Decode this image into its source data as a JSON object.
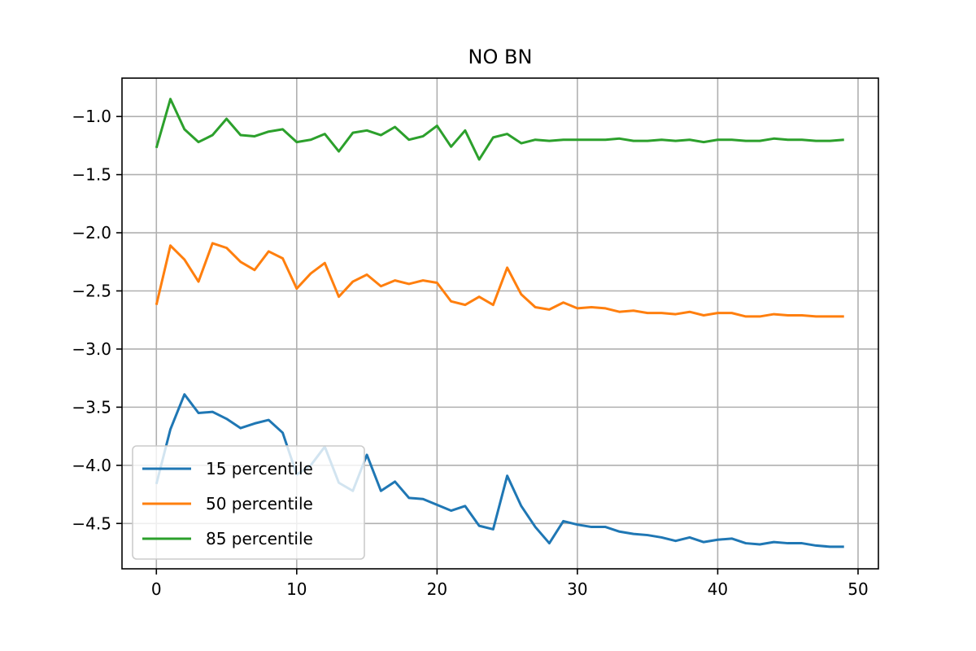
{
  "chart_data": {
    "type": "line",
    "title": "NO BN",
    "xlabel": "",
    "ylabel": "",
    "xlim": [
      -2.45,
      51.45
    ],
    "ylim": [
      -4.89,
      -0.67
    ],
    "xticks": [
      0,
      10,
      20,
      30,
      40,
      50
    ],
    "xtick_labels": [
      "0",
      "10",
      "20",
      "30",
      "40",
      "50"
    ],
    "yticks": [
      -1.0,
      -1.5,
      -2.0,
      -2.5,
      -3.0,
      -3.5,
      -4.0,
      -4.5
    ],
    "ytick_labels": [
      "−1.0",
      "−1.5",
      "−2.0",
      "−2.5",
      "−3.0",
      "−3.5",
      "−4.0",
      "−4.5"
    ],
    "grid": true,
    "legend_position": "lower-left",
    "x": [
      0,
      1,
      2,
      3,
      4,
      5,
      6,
      7,
      8,
      9,
      10,
      11,
      12,
      13,
      14,
      15,
      16,
      17,
      18,
      19,
      20,
      21,
      22,
      23,
      24,
      25,
      26,
      27,
      28,
      29,
      30,
      31,
      32,
      33,
      34,
      35,
      36,
      37,
      38,
      39,
      40,
      41,
      42,
      43,
      44,
      45,
      46,
      47,
      48,
      49
    ],
    "series": [
      {
        "name": "15 percentile",
        "color": "#1f77b4",
        "values": [
          -4.16,
          -3.69,
          -3.39,
          -3.55,
          -3.54,
          -3.6,
          -3.68,
          -3.64,
          -3.61,
          -3.72,
          -4.08,
          -4.0,
          -3.84,
          -4.15,
          -4.22,
          -3.91,
          -4.22,
          -4.14,
          -4.28,
          -4.29,
          -4.34,
          -4.39,
          -4.35,
          -4.52,
          -4.55,
          -4.09,
          -4.35,
          -4.53,
          -4.67,
          -4.48,
          -4.51,
          -4.53,
          -4.53,
          -4.57,
          -4.59,
          -4.6,
          -4.62,
          -4.65,
          -4.62,
          -4.66,
          -4.64,
          -4.63,
          -4.67,
          -4.68,
          -4.66,
          -4.67,
          -4.67,
          -4.69,
          -4.7,
          -4.7
        ]
      },
      {
        "name": "50 percentile",
        "color": "#ff7f0e",
        "values": [
          -2.62,
          -2.11,
          -2.23,
          -2.42,
          -2.09,
          -2.13,
          -2.25,
          -2.32,
          -2.16,
          -2.22,
          -2.48,
          -2.35,
          -2.26,
          -2.55,
          -2.42,
          -2.36,
          -2.46,
          -2.41,
          -2.44,
          -2.41,
          -2.43,
          -2.59,
          -2.62,
          -2.55,
          -2.62,
          -2.3,
          -2.53,
          -2.64,
          -2.66,
          -2.6,
          -2.65,
          -2.64,
          -2.65,
          -2.68,
          -2.67,
          -2.69,
          -2.69,
          -2.7,
          -2.68,
          -2.71,
          -2.69,
          -2.69,
          -2.72,
          -2.72,
          -2.7,
          -2.71,
          -2.71,
          -2.72,
          -2.72,
          -2.72
        ]
      },
      {
        "name": "85 percentile",
        "color": "#2ca02c",
        "values": [
          -1.27,
          -0.85,
          -1.11,
          -1.22,
          -1.16,
          -1.02,
          -1.16,
          -1.17,
          -1.13,
          -1.11,
          -1.22,
          -1.2,
          -1.15,
          -1.3,
          -1.14,
          -1.12,
          -1.16,
          -1.09,
          -1.2,
          -1.17,
          -1.08,
          -1.26,
          -1.12,
          -1.37,
          -1.18,
          -1.15,
          -1.23,
          -1.2,
          -1.21,
          -1.2,
          -1.2,
          -1.2,
          -1.2,
          -1.19,
          -1.21,
          -1.21,
          -1.2,
          -1.21,
          -1.2,
          -1.22,
          -1.2,
          -1.2,
          -1.21,
          -1.21,
          -1.19,
          -1.2,
          -1.2,
          -1.21,
          -1.21,
          -1.2
        ]
      }
    ]
  }
}
